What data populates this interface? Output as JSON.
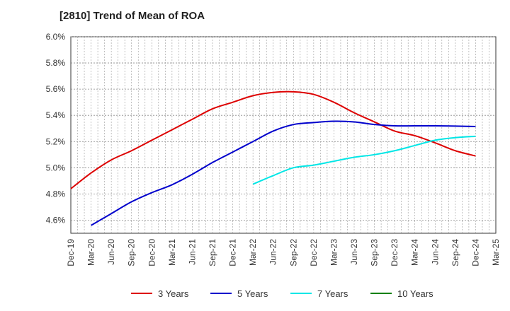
{
  "chart_data": {
    "type": "line",
    "title": "[2810]  Trend of Mean of ROA",
    "xlabel": "",
    "ylabel": "",
    "ylim": [
      4.5,
      6.0
    ],
    "y_ticks": [
      "4.6%",
      "4.8%",
      "5.0%",
      "5.2%",
      "5.4%",
      "5.6%",
      "5.8%",
      "6.0%"
    ],
    "y_tick_values": [
      4.6,
      4.8,
      5.0,
      5.2,
      5.4,
      5.6,
      5.8,
      6.0
    ],
    "x_ticks": [
      "Dec-19",
      "Mar-20",
      "Jun-20",
      "Sep-20",
      "Dec-20",
      "Mar-21",
      "Jun-21",
      "Sep-21",
      "Dec-21",
      "Mar-22",
      "Jun-22",
      "Sep-22",
      "Dec-22",
      "Mar-23",
      "Jun-23",
      "Sep-23",
      "Dec-23",
      "Mar-24",
      "Jun-24",
      "Sep-24",
      "Dec-24",
      "Mar-25"
    ],
    "grid": true,
    "legend_position": "bottom",
    "series": [
      {
        "name": "3 Years",
        "color": "#dd0000",
        "start_index": 0,
        "values": [
          4.84,
          4.96,
          5.06,
          5.13,
          5.21,
          5.29,
          5.37,
          5.45,
          5.5,
          5.55,
          5.575,
          5.58,
          5.56,
          5.5,
          5.42,
          5.35,
          5.28,
          5.245,
          5.19,
          5.13,
          5.09
        ]
      },
      {
        "name": "5 Years",
        "color": "#0000cc",
        "start_index": 1,
        "values": [
          4.56,
          4.65,
          4.74,
          4.81,
          4.87,
          4.95,
          5.04,
          5.12,
          5.2,
          5.28,
          5.33,
          5.345,
          5.355,
          5.35,
          5.33,
          5.32,
          5.32,
          5.32,
          5.318,
          5.315
        ]
      },
      {
        "name": "7 Years",
        "color": "#00e6e6",
        "start_index": 9,
        "values": [
          4.875,
          4.94,
          5.0,
          5.02,
          5.05,
          5.08,
          5.1,
          5.13,
          5.17,
          5.21,
          5.23,
          5.24
        ]
      },
      {
        "name": "10 Years",
        "color": "#008000",
        "start_index": 0,
        "values": []
      }
    ]
  }
}
